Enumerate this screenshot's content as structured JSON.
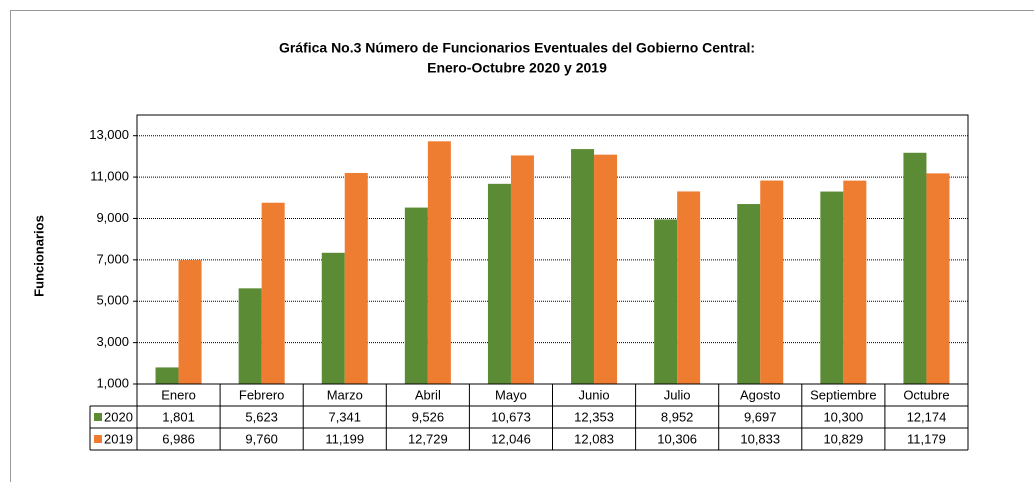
{
  "chart_data": {
    "type": "bar",
    "title": "Gráfica No.3 Número de Funcionarios Eventuales del Gobierno Central:",
    "subtitle": "Enero-Octubre 2020 y 2019",
    "y_label": "Funcionarios",
    "categories": [
      "Enero",
      "Febrero",
      "Marzo",
      "Abril",
      "Mayo",
      "Junio",
      "Julio",
      "Agosto",
      "Septiembre",
      "Octubre"
    ],
    "series": [
      {
        "name": "2020",
        "color": "#5b8b34",
        "values": [
          1801,
          5623,
          7341,
          9526,
          10673,
          12353,
          8952,
          9697,
          10300,
          12174
        ],
        "value_labels": [
          "1,801",
          "5,623",
          "7,341",
          "9,526",
          "10,673",
          "12,353",
          "8,952",
          "9,697",
          "10,300",
          "12,174"
        ]
      },
      {
        "name": "2019",
        "color": "#ee7d31",
        "values": [
          6986,
          9760,
          11199,
          12729,
          12046,
          12083,
          10306,
          10833,
          10829,
          11179
        ],
        "value_labels": [
          "6,986",
          "9,760",
          "11,199",
          "12,729",
          "12,046",
          "12,083",
          "10,306",
          "10,833",
          "10,829",
          "11,179"
        ]
      }
    ],
    "ylim": [
      1000,
      14000
    ],
    "yticks": [
      {
        "value": 1000,
        "label": "1,000"
      },
      {
        "value": 3000,
        "label": "3,000"
      },
      {
        "value": 5000,
        "label": "5,000"
      },
      {
        "value": 7000,
        "label": "7,000"
      },
      {
        "value": 9000,
        "label": "9,000"
      },
      {
        "value": 11000,
        "label": "11,000"
      },
      {
        "value": 13000,
        "label": "13,000"
      }
    ],
    "grid": true
  }
}
